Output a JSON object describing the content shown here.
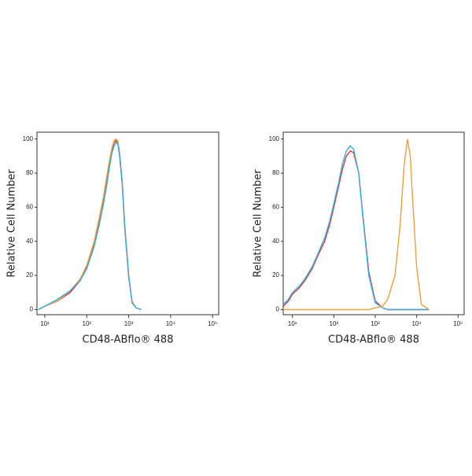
{
  "chart_data": [
    {
      "type": "line",
      "xlabel": "CD48-ABflo® 488",
      "ylabel": "Relative Cell Number",
      "xscale": "log",
      "xlim": [
        6.5,
        140000
      ],
      "ylim": [
        -3,
        104
      ],
      "xticks": [
        {
          "value": 10,
          "label": "10¹"
        },
        {
          "value": 100,
          "label": "10²"
        },
        {
          "value": 1000,
          "label": "10³"
        },
        {
          "value": 10000,
          "label": "10⁴"
        },
        {
          "value": 100000,
          "label": "10⁵"
        }
      ],
      "yticks": [
        0,
        20,
        40,
        60,
        80,
        100
      ],
      "x": [
        7,
        10,
        20,
        40,
        70,
        100,
        150,
        200,
        250,
        300,
        350,
        400,
        450,
        500,
        550,
        600,
        700,
        800,
        1000,
        1200,
        1500,
        2000
      ],
      "series": [
        {
          "color": "#e03a3a",
          "values": [
            0,
            2,
            5,
            10,
            17,
            25,
            38,
            52,
            63,
            75,
            86,
            93,
            98,
            99,
            97,
            91,
            74,
            49,
            19,
            5,
            1,
            0
          ]
        },
        {
          "color": "#f0a040",
          "values": [
            0,
            2,
            5,
            11,
            18,
            26,
            40,
            54,
            66,
            78,
            88,
            95,
            99,
            100,
            99,
            93,
            76,
            51,
            20,
            5,
            1,
            0
          ]
        },
        {
          "color": "#35aee0",
          "values": [
            0,
            2,
            6,
            11,
            17,
            24,
            37,
            50,
            62,
            73,
            84,
            92,
            96,
            98,
            97,
            92,
            75,
            50,
            20,
            4,
            1,
            0
          ]
        }
      ]
    },
    {
      "type": "line",
      "xlabel": "CD48-ABflo® 488",
      "ylabel": "Relative Cell Number",
      "xscale": "log",
      "xlim": [
        6,
        140000
      ],
      "ylim": [
        -3,
        104
      ],
      "xticks": [
        {
          "value": 10,
          "label": "10¹"
        },
        {
          "value": 100,
          "label": "10²"
        },
        {
          "value": 1000,
          "label": "10³"
        },
        {
          "value": 10000,
          "label": "10⁴"
        },
        {
          "value": 100000,
          "label": "10⁵"
        }
      ],
      "yticks": [
        0,
        20,
        40,
        60,
        80,
        100
      ],
      "x": [
        6,
        8,
        10,
        15,
        20,
        30,
        40,
        60,
        80,
        100,
        130,
        160,
        200,
        250,
        300,
        400,
        500,
        700,
        1000,
        1500,
        2000,
        3000,
        4000,
        5000,
        6000,
        7000,
        8000,
        10000,
        13000,
        20000
      ],
      "series": [
        {
          "color": "#e03a3a",
          "values": [
            2,
            5,
            9,
            13,
            17,
            24,
            31,
            40,
            50,
            60,
            72,
            82,
            90,
            93,
            92,
            80,
            56,
            22,
            5,
            1,
            0,
            0,
            0,
            0,
            0,
            0,
            0,
            0,
            0,
            0
          ]
        },
        {
          "color": "#35aee0",
          "values": [
            3,
            6,
            10,
            14,
            18,
            25,
            32,
            42,
            52,
            62,
            74,
            85,
            93,
            96,
            94,
            80,
            55,
            20,
            4,
            1,
            0,
            0,
            0,
            0,
            0,
            0,
            0,
            0,
            0,
            0
          ]
        },
        {
          "color": "#f0a040",
          "values": [
            0,
            0,
            0,
            0,
            0,
            0,
            0,
            0,
            0,
            0,
            0,
            0,
            0,
            0,
            0,
            0,
            0,
            0,
            1,
            2,
            6,
            20,
            50,
            85,
            100,
            90,
            65,
            25,
            3,
            0
          ]
        }
      ]
    }
  ]
}
